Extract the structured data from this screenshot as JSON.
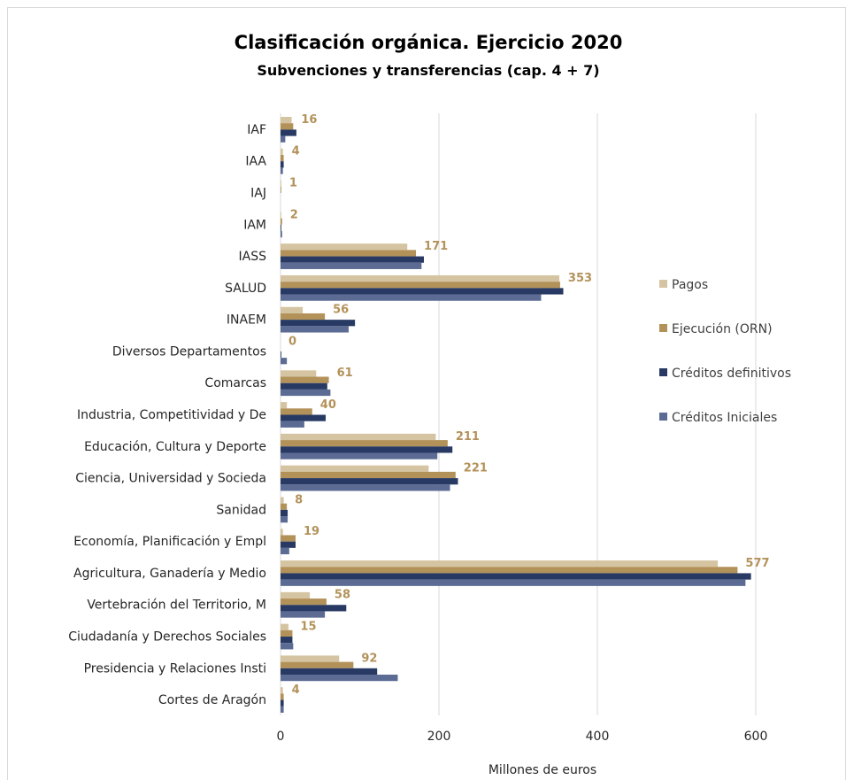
{
  "chart_data": {
    "type": "bar",
    "orientation": "horizontal",
    "title": "Clasificación orgánica. Ejercicio 2020",
    "subtitle": "Subvenciones y transferencias (cap. 4 + 7)",
    "xlabel": "Millones de euros",
    "xlim": [
      0,
      700
    ],
    "xticks": [
      0,
      200,
      400,
      600
    ],
    "grid": true,
    "legend_position": "right",
    "categories": [
      "IAF",
      "IAA",
      "IAJ",
      "IAM",
      "IASS",
      "SALUD",
      "INAEM",
      "Diversos Departamentos",
      "Comarcas",
      "Industria, Competitividad y De",
      "Educación, Cultura y Deporte",
      "Ciencia, Universidad y Socieda",
      "Sanidad",
      "Economía, Planificación y Empl",
      "Agricultura, Ganadería y Medio",
      "Vertebración del Territorio, M",
      "Ciudadanía y Derechos Sociales",
      "Presidencia y Relaciones Insti",
      "Cortes de Aragón"
    ],
    "series": [
      {
        "name": "Pagos",
        "color": "#d5c4a1",
        "values": [
          14,
          3,
          1,
          1,
          160,
          352,
          28,
          0,
          45,
          8,
          196,
          187,
          4,
          3,
          552,
          37,
          10,
          74,
          3
        ]
      },
      {
        "name": "Ejecución (ORN)",
        "color": "#b3925a",
        "values": [
          16,
          4,
          1,
          2,
          171,
          353,
          56,
          0,
          61,
          40,
          211,
          221,
          8,
          19,
          577,
          58,
          15,
          92,
          4
        ]
      },
      {
        "name": "Créditos definitivos",
        "color": "#283a63",
        "values": [
          20,
          4,
          0,
          1,
          181,
          357,
          94,
          1,
          59,
          57,
          217,
          224,
          9,
          19,
          594,
          83,
          15,
          122,
          4
        ]
      },
      {
        "name": "Créditos Iniciales",
        "color": "#5b6b93",
        "values": [
          6,
          3,
          0,
          2,
          178,
          329,
          86,
          8,
          63,
          30,
          198,
          214,
          9,
          11,
          587,
          56,
          16,
          148,
          4
        ]
      }
    ],
    "data_labels": [
      "16",
      "4",
      "1",
      "2",
      "171",
      "353",
      "56",
      "0",
      "61",
      "40",
      "211",
      "221",
      "8",
      "19",
      "577",
      "58",
      "15",
      "92",
      "4"
    ],
    "label_color": "#b3925a"
  }
}
